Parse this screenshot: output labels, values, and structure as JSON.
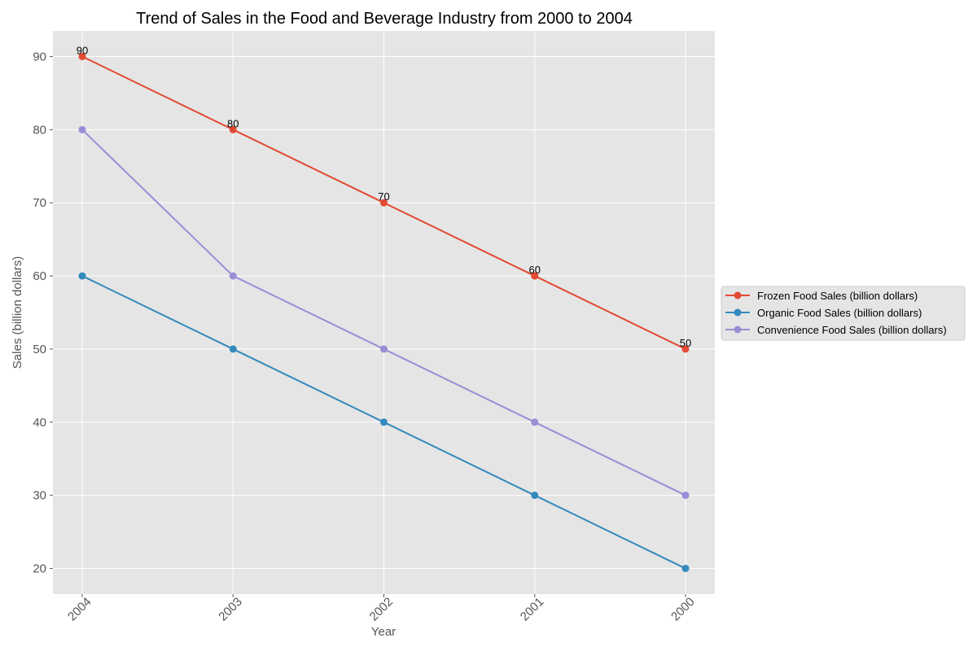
{
  "chart_data": {
    "type": "line",
    "title": "Trend of Sales in the Food and Beverage Industry from 2000 to 2004",
    "xlabel": "Year",
    "ylabel": "Sales (billion dollars)",
    "categories": [
      "2004",
      "2003",
      "2002",
      "2001",
      "2000"
    ],
    "series": [
      {
        "name": "Frozen Food Sales (billion dollars)",
        "values": [
          90,
          80,
          70,
          60,
          50
        ],
        "color": "#E24A33",
        "labeled": true
      },
      {
        "name": "Organic Food Sales (billion dollars)",
        "values": [
          60,
          50,
          40,
          30,
          20
        ],
        "color": "#348ABD",
        "labeled": false
      },
      {
        "name": "Convenience Food Sales (billion dollars)",
        "values": [
          80,
          60,
          50,
          40,
          30
        ],
        "color": "#988ED5",
        "labeled": false
      }
    ],
    "ylim": [
      16.5,
      93.5
    ],
    "yticks": [
      20,
      30,
      40,
      50,
      60,
      70,
      80,
      90
    ],
    "grid": true,
    "legend_position": "right"
  }
}
